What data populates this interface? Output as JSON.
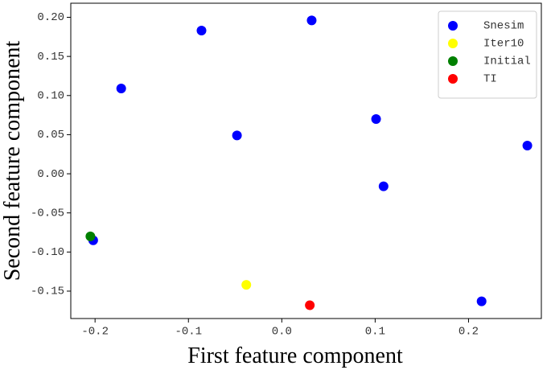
{
  "chart_data": {
    "type": "scatter",
    "x_label": "First feature component",
    "y_label": "Second feature component",
    "xlim": [
      -0.226,
      0.278
    ],
    "ylim": [
      -0.185,
      0.218
    ],
    "xticks": [
      -0.2,
      -0.1,
      {
        "value": 0,
        "label": "0.0"
      },
      0.1,
      0.2
    ],
    "yticks": [
      {
        "value": 0.2,
        "label": "0.20"
      },
      {
        "value": 0.15,
        "label": "0.15"
      },
      {
        "value": 0.1,
        "label": "0.10"
      },
      {
        "value": 0.05,
        "label": "0.05"
      },
      {
        "value": 0,
        "label": "0.00"
      },
      {
        "value": -0.05,
        "label": "-0.05"
      },
      {
        "value": -0.1,
        "label": "-0.10"
      },
      {
        "value": -0.15,
        "label": "-0.15"
      }
    ],
    "legend_position": "upper-right",
    "series": [
      {
        "name": "Snesim",
        "color": "#0000ff",
        "x": [
          0.032,
          -0.086,
          -0.172,
          -0.048,
          0.101,
          0.263,
          0.109,
          -0.202,
          0.214
        ],
        "y": [
          0.196,
          0.183,
          0.109,
          0.049,
          0.07,
          0.036,
          -0.016,
          -0.085,
          -0.163
        ]
      },
      {
        "name": "Iter10",
        "color": "#ffff00",
        "x": [
          -0.038
        ],
        "y": [
          -0.142
        ]
      },
      {
        "name": "Initial",
        "color": "#008000",
        "x": [
          -0.205
        ],
        "y": [
          -0.08
        ]
      },
      {
        "name": "TI",
        "color": "#ff0000",
        "x": [
          0.03
        ],
        "y": [
          -0.168
        ]
      }
    ]
  }
}
